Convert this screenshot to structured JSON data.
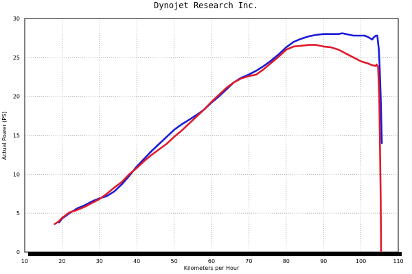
{
  "chart_data": {
    "type": "line",
    "title": "Dynojet  Research  Inc.",
    "xlabel": "Kilometers per Hour",
    "ylabel": "Actual Power (PS)",
    "xlim": [
      10,
      110
    ],
    "ylim": [
      0,
      30
    ],
    "x_ticks": [
      10,
      20,
      30,
      40,
      50,
      60,
      70,
      80,
      90,
      100,
      110
    ],
    "y_ticks": [
      0,
      5,
      10,
      15,
      20,
      25,
      30
    ],
    "grid": true,
    "series": [
      {
        "color": "#1a1adc",
        "points": [
          [
            19.2,
            3.8
          ],
          [
            20,
            4.3
          ],
          [
            22,
            5.0
          ],
          [
            24,
            5.6
          ],
          [
            26,
            6.0
          ],
          [
            28,
            6.5
          ],
          [
            30,
            6.9
          ],
          [
            32,
            7.2
          ],
          [
            34,
            7.8
          ],
          [
            36,
            8.7
          ],
          [
            38,
            9.8
          ],
          [
            40,
            11.0
          ],
          [
            42,
            12.0
          ],
          [
            44,
            13.0
          ],
          [
            46,
            13.9
          ],
          [
            48,
            14.8
          ],
          [
            50,
            15.7
          ],
          [
            52,
            16.4
          ],
          [
            54,
            17.0
          ],
          [
            56,
            17.6
          ],
          [
            58,
            18.3
          ],
          [
            60,
            19.2
          ],
          [
            62,
            20.0
          ],
          [
            64,
            20.9
          ],
          [
            66,
            21.8
          ],
          [
            68,
            22.4
          ],
          [
            70,
            22.8
          ],
          [
            72,
            23.3
          ],
          [
            74,
            23.9
          ],
          [
            76,
            24.6
          ],
          [
            78,
            25.4
          ],
          [
            80,
            26.3
          ],
          [
            82,
            27.0
          ],
          [
            84,
            27.4
          ],
          [
            86,
            27.7
          ],
          [
            88,
            27.9
          ],
          [
            90,
            28.0
          ],
          [
            92,
            28.0
          ],
          [
            94,
            28.0
          ],
          [
            95,
            28.1
          ],
          [
            96,
            28.0
          ],
          [
            98,
            27.8
          ],
          [
            100,
            27.8
          ],
          [
            101,
            27.8
          ],
          [
            102,
            27.6
          ],
          [
            103,
            27.3
          ],
          [
            103.5,
            27.6
          ],
          [
            104,
            27.8
          ],
          [
            104.4,
            27.8
          ],
          [
            104.8,
            26.0
          ],
          [
            105.0,
            24.0
          ],
          [
            105.3,
            20.0
          ],
          [
            105.6,
            14.0
          ]
        ]
      },
      {
        "color": "#e01a2a",
        "points": [
          [
            18,
            3.6
          ],
          [
            19,
            3.9
          ],
          [
            20,
            4.4
          ],
          [
            22,
            5.1
          ],
          [
            24,
            5.4
          ],
          [
            26,
            5.8
          ],
          [
            28,
            6.3
          ],
          [
            30,
            6.8
          ],
          [
            32,
            7.5
          ],
          [
            34,
            8.3
          ],
          [
            36,
            9.0
          ],
          [
            38,
            10.0
          ],
          [
            40,
            10.8
          ],
          [
            42,
            11.7
          ],
          [
            44,
            12.5
          ],
          [
            46,
            13.2
          ],
          [
            48,
            13.9
          ],
          [
            50,
            14.8
          ],
          [
            52,
            15.6
          ],
          [
            54,
            16.5
          ],
          [
            56,
            17.4
          ],
          [
            58,
            18.3
          ],
          [
            60,
            19.3
          ],
          [
            62,
            20.2
          ],
          [
            64,
            21.1
          ],
          [
            66,
            21.8
          ],
          [
            68,
            22.3
          ],
          [
            70,
            22.6
          ],
          [
            72,
            22.8
          ],
          [
            74,
            23.5
          ],
          [
            76,
            24.3
          ],
          [
            78,
            25.1
          ],
          [
            80,
            26.0
          ],
          [
            82,
            26.4
          ],
          [
            84,
            26.5
          ],
          [
            86,
            26.6
          ],
          [
            88,
            26.6
          ],
          [
            90,
            26.4
          ],
          [
            92,
            26.3
          ],
          [
            94,
            26.0
          ],
          [
            96,
            25.5
          ],
          [
            98,
            25.0
          ],
          [
            100,
            24.5
          ],
          [
            102,
            24.2
          ],
          [
            103,
            24.0
          ],
          [
            104,
            23.9
          ],
          [
            104.2,
            24.1
          ],
          [
            104.6,
            23.8
          ],
          [
            104.9,
            20.0
          ],
          [
            105.1,
            14.0
          ],
          [
            105.3,
            7.0
          ],
          [
            105.4,
            0.0
          ]
        ]
      }
    ]
  }
}
